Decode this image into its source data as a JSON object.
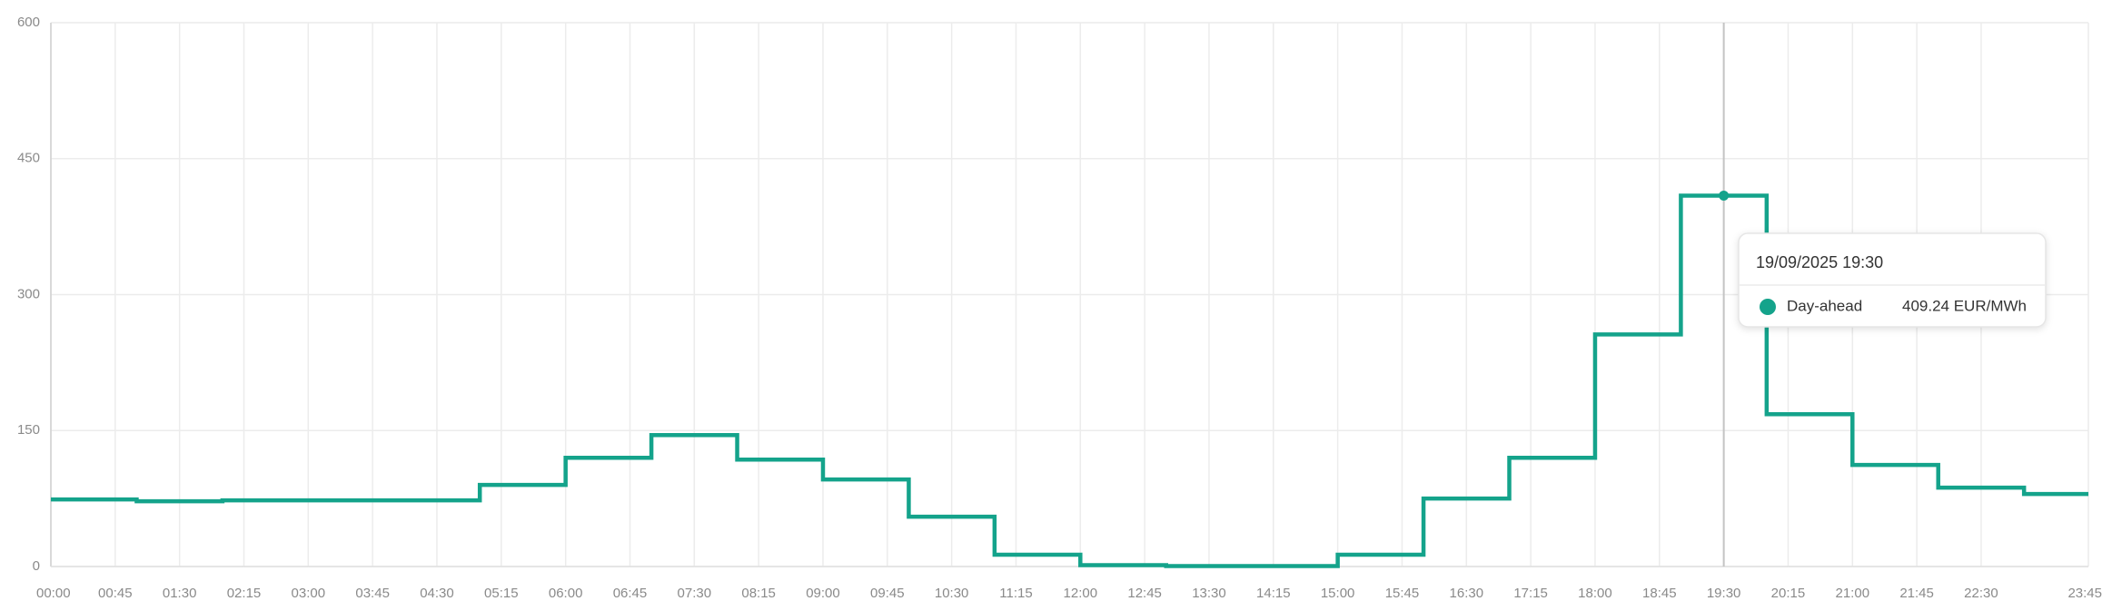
{
  "chart_data": {
    "type": "line",
    "step": true,
    "x": [
      "00:00",
      "01:00",
      "02:00",
      "03:00",
      "04:00",
      "05:00",
      "06:00",
      "07:00",
      "08:00",
      "09:00",
      "10:00",
      "11:00",
      "12:00",
      "13:00",
      "14:00",
      "15:00",
      "16:00",
      "17:00",
      "18:00",
      "19:00",
      "20:00",
      "21:00",
      "22:00",
      "23:00"
    ],
    "series": [
      {
        "name": "Day-ahead",
        "color": "#14a38b",
        "values": [
          74,
          72,
          73,
          73,
          73,
          90,
          120,
          145,
          118,
          96,
          55,
          13,
          1.5,
          0.5,
          0.5,
          13,
          75,
          120,
          256,
          409.24,
          168,
          112,
          87,
          80
        ]
      }
    ],
    "xlim": [
      "00:00",
      "23:45"
    ],
    "xticks": [
      "00:00",
      "00:45",
      "01:30",
      "02:15",
      "03:00",
      "03:45",
      "04:30",
      "05:15",
      "06:00",
      "06:45",
      "07:30",
      "08:15",
      "09:00",
      "09:45",
      "10:30",
      "11:15",
      "12:00",
      "12:45",
      "13:30",
      "14:15",
      "15:00",
      "15:45",
      "16:30",
      "17:15",
      "18:00",
      "18:45",
      "19:30",
      "20:15",
      "21:00",
      "21:45",
      "22:30",
      "23:45"
    ],
    "ylim": [
      0,
      600
    ],
    "yticks": [
      0,
      150,
      300,
      450,
      600
    ],
    "grid": true,
    "tooltip": {
      "title": "19/09/2025 19:30",
      "label": "409.24 EUR/MWh"
    }
  }
}
